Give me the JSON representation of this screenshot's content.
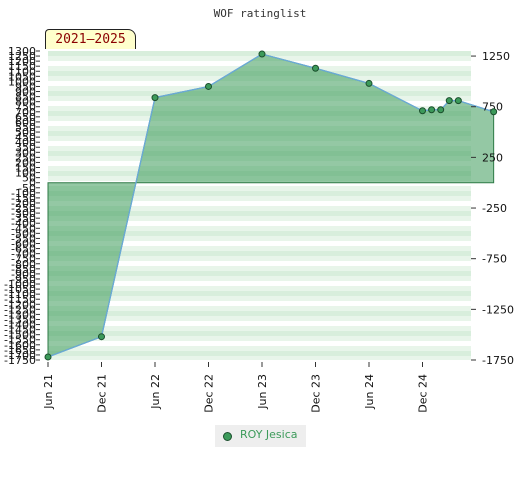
{
  "chart_data": {
    "type": "area",
    "title": "WOF ratinglist",
    "badge": "2021–2025",
    "x_labels": [
      "Jun 21",
      "Dec 21",
      "Jun 22",
      "Dec 22",
      "Jun 23",
      "Dec 23",
      "Jun 24",
      "Dec 24"
    ],
    "left_ticks": [
      "1300",
      "1250",
      "1200",
      "1150",
      "1100",
      "1050",
      "1000",
      "950",
      "900",
      "850",
      "800",
      "750",
      "700",
      "650",
      "600",
      "550",
      "500",
      "450",
      "400",
      "350",
      "300",
      "250",
      "200",
      "150",
      "100",
      "50",
      "0",
      "-50",
      "-100",
      "-150",
      "-200",
      "-250",
      "-300",
      "-350",
      "-400",
      "-450",
      "-500",
      "-550",
      "-600",
      "-650",
      "-700",
      "-750",
      "-800",
      "-850",
      "-900",
      "-950",
      "-1000",
      "-1050",
      "-1100",
      "-1150",
      "-1200",
      "-1250",
      "-1300",
      "-1350",
      "-1400",
      "-1450",
      "-1500",
      "-1550",
      "-1600",
      "-1650",
      "-1700",
      "-1750"
    ],
    "right_ticks": [
      "1250",
      "750",
      "250",
      "-250",
      "-750",
      "-1250",
      "-1750"
    ],
    "ylim": [
      -1750,
      1300
    ],
    "grid": "horizontal bands",
    "series": [
      {
        "name": "ROY Jesica",
        "color": "#3c9a5a",
        "points": [
          {
            "x": 0,
            "y": -1720
          },
          {
            "x": 1,
            "y": -1520
          },
          {
            "x": 2,
            "y": 840
          },
          {
            "x": 3,
            "y": 950
          },
          {
            "x": 4,
            "y": 1270
          },
          {
            "x": 5,
            "y": 1130
          },
          {
            "x": 6,
            "y": 980
          },
          {
            "x": 7,
            "y": 710
          },
          {
            "x": 7.17,
            "y": 720
          },
          {
            "x": 7.34,
            "y": 720
          },
          {
            "x": 7.5,
            "y": 810
          },
          {
            "x": 7.67,
            "y": 810
          },
          {
            "x": 8.33,
            "y": 700
          }
        ]
      }
    ],
    "legend_position": "bottom"
  }
}
